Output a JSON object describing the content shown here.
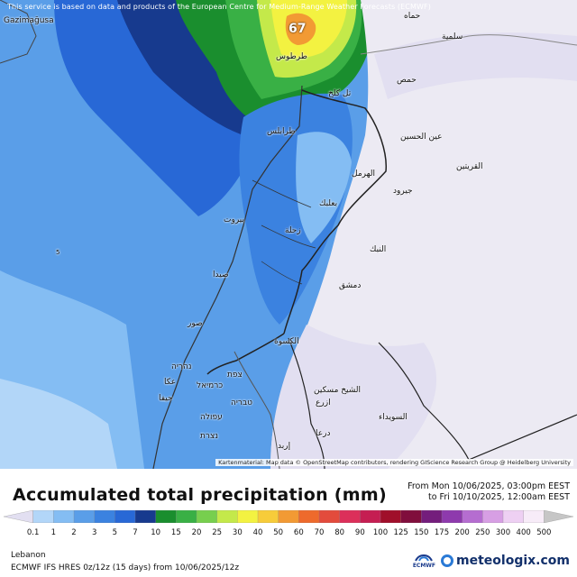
{
  "map": {
    "notice": "This service is based on data and products of the European Centre for Medium-Range Weather Forecasts (ECMWF)",
    "attribution": "Kartenmaterial: Map data © OpenStreetMap contributors, rendering GIScience Research Group @ Heidelberg University",
    "max_value_label": "67",
    "sea_value_label": "5",
    "place_labels": [
      "Gazimağusa",
      "حماه",
      "سلمية",
      "حمص",
      "طرطوس",
      "تل كلخ",
      "طرابلس",
      "عين الحسين",
      "القريتين",
      "الهرمل",
      "جيرود",
      "بعلبك",
      "بيروت",
      "زحلة",
      "النبك",
      "صيدا",
      "دمشق",
      "صور",
      "الكسوة",
      "נהריה",
      "צפת",
      "عكا",
      "כרמיאל",
      "حيفا",
      "טבריה",
      "الشيخ مسكين",
      "ازرع",
      "עפולה",
      "السويداء",
      "נצרת",
      "درعا",
      "إربد"
    ]
  },
  "legend": {
    "title": "Accumulated total precipitation (mm)",
    "period_line1": "From Mon 10/06/2025, 03:00pm EEST",
    "period_line2": "to Fri 10/10/2025, 12:00am EEST",
    "unit": "mm",
    "ticks": [
      "0.1",
      "1",
      "2",
      "3",
      "5",
      "7",
      "10",
      "15",
      "20",
      "25",
      "30",
      "40",
      "50",
      "60",
      "70",
      "80",
      "90",
      "100",
      "125",
      "150",
      "175",
      "200",
      "250",
      "300",
      "400",
      "500"
    ],
    "colors": [
      "#e2dff1",
      "#b2d6f8",
      "#84bdf3",
      "#5a9ee8",
      "#3b82e0",
      "#2868d6",
      "#173a8e",
      "#1a8e2e",
      "#39b045",
      "#77cf4e",
      "#c4e94a",
      "#f3f241",
      "#f7cc3a",
      "#f29a34",
      "#ee6a2c",
      "#e34b3c",
      "#dc2f5a",
      "#c51e52",
      "#a00f2a",
      "#800e3c",
      "#741d7c",
      "#8e3aad",
      "#b56dd0",
      "#d79fe4",
      "#eed0f3",
      "#f7ecf8",
      "#c6c6c6"
    ]
  },
  "footer": {
    "region": "Lebanon",
    "model_line": "ECMWF IFS HRES 0z/12z (15 days) from 10/06/2025/12z",
    "ecmwf_logo_text": "ECMWF",
    "brand": "meteologix.com"
  }
}
